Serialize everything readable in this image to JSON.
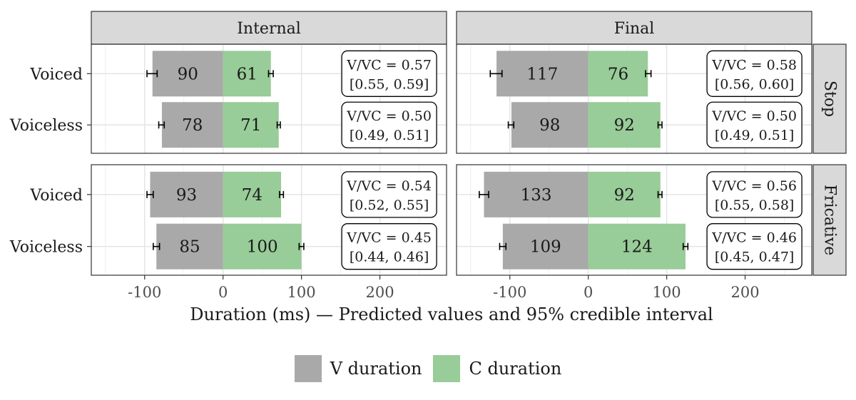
{
  "chart_data": {
    "type": "bar",
    "layout": "diverging horizontal bars, faceted",
    "xlabel": "Duration (ms) — Predicted values and 95% credible interval",
    "xticks": [
      -100,
      0,
      100,
      200
    ],
    "xlim": [
      -168,
      285
    ],
    "columns": [
      "Internal",
      "Final"
    ],
    "rows": [
      "Stop",
      "Fricative"
    ],
    "categories": [
      "Voiced",
      "Voiceless"
    ],
    "colors": {
      "V duration": "#a9a9a9",
      "C duration": "#98cc98"
    },
    "legend": {
      "position": "bottom",
      "items": [
        "V duration",
        "C duration"
      ]
    },
    "grid": true,
    "panels": [
      {
        "column": "Internal",
        "row": "Stop",
        "bars": [
          {
            "category": "Voiced",
            "V": 90,
            "V_ci": [
              84,
              97
            ],
            "C": 61,
            "C_ci": [
              58,
              64
            ],
            "ratio_label": "V/VC = 0.57",
            "ci_label": "[0.55, 0.59]"
          },
          {
            "category": "Voiceless",
            "V": 78,
            "V_ci": [
              75,
              82
            ],
            "C": 71,
            "C_ci": [
              69,
              73
            ],
            "ratio_label": "V/VC = 0.50",
            "ci_label": "[0.49, 0.51]"
          }
        ]
      },
      {
        "column": "Final",
        "row": "Stop",
        "bars": [
          {
            "category": "Voiced",
            "V": 117,
            "V_ci": [
              110,
              125
            ],
            "C": 76,
            "C_ci": [
              73,
              80
            ],
            "ratio_label": "V/VC = 0.58",
            "ci_label": "[0.56, 0.60]"
          },
          {
            "category": "Voiceless",
            "V": 98,
            "V_ci": [
              95,
              102
            ],
            "C": 92,
            "C_ci": [
              89,
              94
            ],
            "ratio_label": "V/VC = 0.50",
            "ci_label": "[0.49, 0.51]"
          }
        ]
      },
      {
        "column": "Internal",
        "row": "Fricative",
        "bars": [
          {
            "category": "Voiced",
            "V": 93,
            "V_ci": [
              89,
              97
            ],
            "C": 74,
            "C_ci": [
              72,
              77
            ],
            "ratio_label": "V/VC = 0.54",
            "ci_label": "[0.52, 0.55]"
          },
          {
            "category": "Voiceless",
            "V": 85,
            "V_ci": [
              81,
              89
            ],
            "C": 100,
            "C_ci": [
              97,
              103
            ],
            "ratio_label": "V/VC = 0.45",
            "ci_label": "[0.44, 0.46]"
          }
        ]
      },
      {
        "column": "Final",
        "row": "Fricative",
        "bars": [
          {
            "category": "Voiced",
            "V": 133,
            "V_ci": [
              127,
              139
            ],
            "C": 92,
            "C_ci": [
              89,
              94
            ],
            "ratio_label": "V/VC = 0.56",
            "ci_label": "[0.55, 0.58]"
          },
          {
            "category": "Voiceless",
            "V": 109,
            "V_ci": [
              105,
              113
            ],
            "C": 124,
            "C_ci": [
              121,
              127
            ],
            "ratio_label": "V/VC = 0.46",
            "ci_label": "[0.45, 0.47]"
          }
        ]
      }
    ]
  }
}
